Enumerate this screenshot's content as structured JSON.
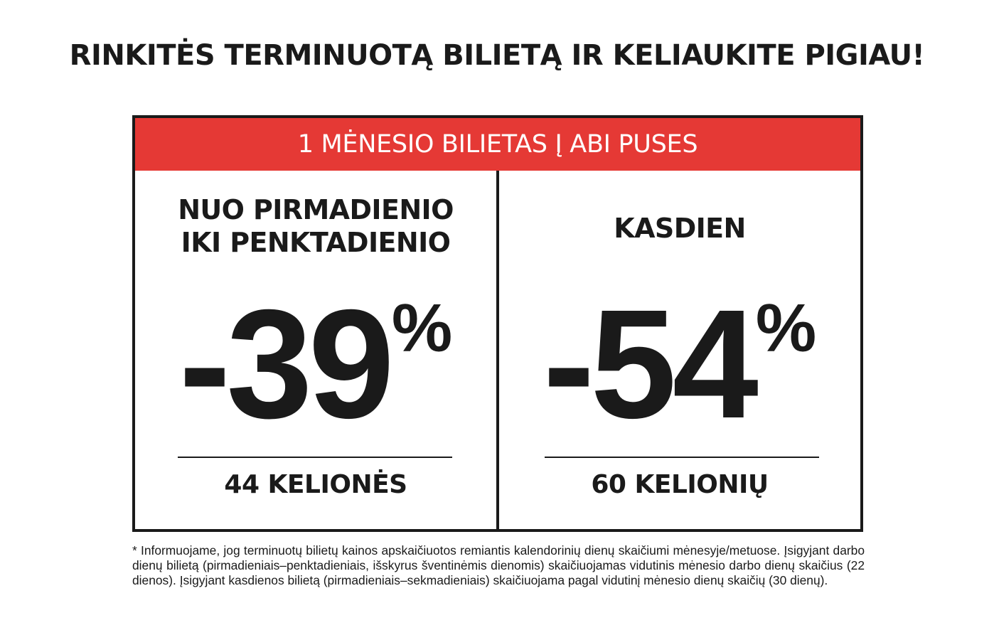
{
  "headline": "RINKITĖS TERMINUOTĄ BILIETĄ IR KELIAUKITE PIGIAU!",
  "banner": {
    "label": "1 MĖNESIO BILIETAS Į ABI PUSES",
    "color": "#e53935"
  },
  "offers": [
    {
      "title_line1": "NUO PIRMADIENIO",
      "title_line2": "IKI PENKTADIENIO",
      "discount": "-39",
      "percent_sign": "%",
      "trips": "44 KELIONĖS"
    },
    {
      "title_line1": "KASDIEN",
      "discount": "-54",
      "percent_sign": "%",
      "trips": "60 KELIONIŲ"
    }
  ],
  "footnote": "* Informuojame, jog terminuotų bilietų kainos apskaičiuotos remiantis kalendorinių dienų skaičiumi mėnesyje/metuose. Įsigyjant darbo dienų bilietą (pirmadieniais–penktadieniais, išskyrus šventinėmis dienomis) skaičiuojamas vidutinis mėnesio darbo dienų skaičius (22 dienos). Įsigyjant kasdienos bilietą (pirmadieniais–sekmadieniais) skaičiuojama pagal vidutinį mėnesio dienų skaičių (30 dienų).",
  "colors": {
    "text": "#1a1a1a",
    "accent": "#e53935",
    "background": "#ffffff"
  }
}
